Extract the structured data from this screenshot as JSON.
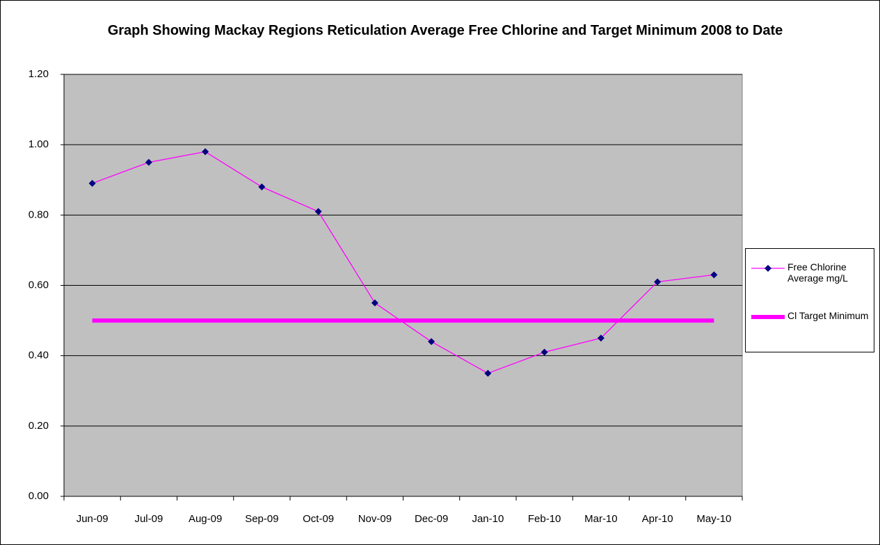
{
  "chart_data": {
    "type": "line",
    "title": "Graph Showing Mackay Regions Reticulation Average Free Chlorine and Target Minimum 2008 to Date",
    "categories": [
      "Jun-09",
      "Jul-09",
      "Aug-09",
      "Sep-09",
      "Oct-09",
      "Nov-09",
      "Dec-09",
      "Jan-10",
      "Feb-10",
      "Mar-10",
      "Apr-10",
      "May-10"
    ],
    "series": [
      {
        "name": "Free Chlorine Average mg/L",
        "color": "#ff00ff",
        "marker_color": "#000080",
        "values": [
          0.89,
          0.95,
          0.98,
          0.88,
          0.81,
          0.55,
          0.44,
          0.35,
          0.41,
          0.45,
          0.61,
          0.63
        ]
      },
      {
        "name": "Cl Target Minimum",
        "color": "#ff00ff",
        "values": [
          0.5,
          0.5,
          0.5,
          0.5,
          0.5,
          0.5,
          0.5,
          0.5,
          0.5,
          0.5,
          0.5,
          0.5
        ]
      }
    ],
    "ylim": [
      0,
      1.2
    ],
    "yticks": [
      {
        "value": 0,
        "label": "0.00"
      },
      {
        "value": 0.2,
        "label": "0.20"
      },
      {
        "value": 0.4,
        "label": "0.40"
      },
      {
        "value": 0.6,
        "label": "0.60"
      },
      {
        "value": 0.8,
        "label": "0.80"
      },
      {
        "value": 1,
        "label": "1.00"
      },
      {
        "value": 1.2,
        "label": "1.20"
      }
    ],
    "grid": true,
    "legend": "right",
    "plot_background": "#c0c0c0"
  }
}
